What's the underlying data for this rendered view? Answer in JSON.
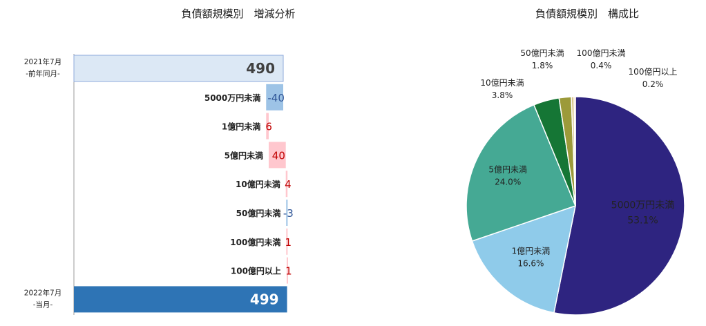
{
  "chart_data": [
    {
      "type": "waterfall",
      "title": "負債額規模別　増減分析",
      "start": {
        "label_line1": "2021年7月",
        "label_line2": "-前年同月-",
        "value": 490,
        "color": "#dce8f5"
      },
      "end": {
        "label_line1": "2022年7月",
        "label_line2": "-当月-",
        "value": 499,
        "color": "#2e74b5"
      },
      "steps": [
        {
          "category": "5000万円未満",
          "value": -40,
          "display": "-40"
        },
        {
          "category": "1億円未満",
          "value": 6,
          "display": "6"
        },
        {
          "category": "5億円未満",
          "value": 40,
          "display": "40"
        },
        {
          "category": "10億円未満",
          "value": 4,
          "display": "4"
        },
        {
          "category": "50億円未満",
          "value": -3,
          "display": "-3"
        },
        {
          "category": "100億円未満",
          "value": 1,
          "display": "1"
        },
        {
          "category": "100億円以上",
          "value": 1,
          "display": "1"
        }
      ],
      "colors": {
        "increase": "#ffc7ce",
        "decrease": "#9dc3e6",
        "increase_text": "#c00000",
        "decrease_text": "#2f5597"
      }
    },
    {
      "type": "pie",
      "title": "負債額規模別　構成比",
      "slices": [
        {
          "label": "5000万円未満",
          "value": 53.1,
          "display": "53.1%",
          "color": "#2e2480",
          "text_color": "#ffffff"
        },
        {
          "label": "1億円未満",
          "value": 16.6,
          "display": "16.6%",
          "color": "#8fcbea",
          "text_color": "#222222"
        },
        {
          "label": "5億円未満",
          "value": 24.0,
          "display": "24.0%",
          "color": "#45a994",
          "text_color": "#222222"
        },
        {
          "label": "10億円未満",
          "value": 3.8,
          "display": "3.8%",
          "color": "#157635",
          "text_color": "#222222"
        },
        {
          "label": "50億円未満",
          "value": 1.8,
          "display": "1.8%",
          "color": "#9c9a3a",
          "text_color": "#222222"
        },
        {
          "label": "100億円未満",
          "value": 0.4,
          "display": "0.4%",
          "color": "#d9c58c",
          "text_color": "#222222"
        },
        {
          "label": "100億円以上",
          "value": 0.2,
          "display": "0.2%",
          "color": "#e9a86f",
          "text_color": "#222222"
        }
      ]
    }
  ]
}
